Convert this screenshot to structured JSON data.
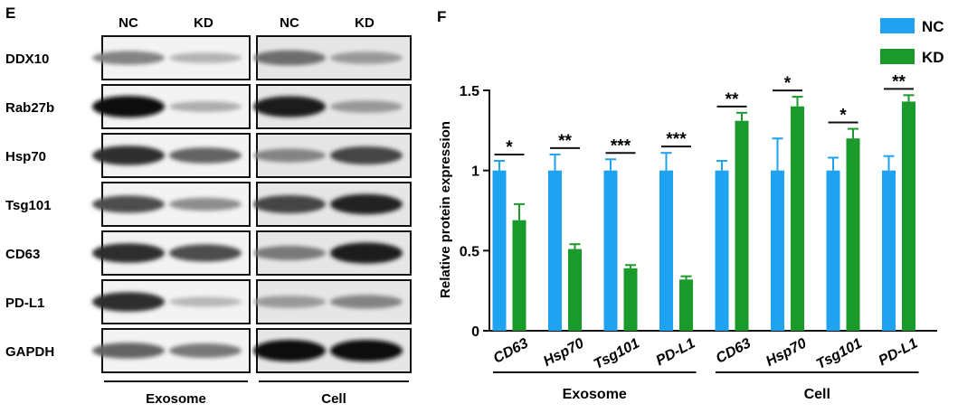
{
  "panel_e": {
    "label": "E",
    "columns": [
      "NC",
      "KD",
      "NC",
      "KD"
    ],
    "rows": [
      "DDX10",
      "Rab27b",
      "Hsp70",
      "Tsg101",
      "CD63",
      "PD-L1",
      "GAPDH"
    ],
    "groups": [
      "Exosome",
      "Cell"
    ],
    "band_intensity": [
      [
        0.45,
        0.22,
        0.55,
        0.35
      ],
      [
        1.0,
        0.25,
        0.95,
        0.35
      ],
      [
        0.85,
        0.6,
        0.45,
        0.75
      ],
      [
        0.7,
        0.4,
        0.75,
        0.9
      ],
      [
        0.85,
        0.7,
        0.5,
        0.95
      ],
      [
        0.85,
        0.2,
        0.35,
        0.45
      ],
      [
        0.6,
        0.5,
        1.0,
        1.0
      ]
    ]
  },
  "chart_data": {
    "type": "bar",
    "panel_label": "F",
    "categories": [
      "CD63",
      "Hsp70",
      "Tsg101",
      "PD-L1",
      "CD63",
      "Hsp70",
      "Tsg101",
      "PD-L1"
    ],
    "groups": [
      {
        "name": "Exosome",
        "category_indices": [
          0,
          1,
          2,
          3
        ]
      },
      {
        "name": "Cell",
        "category_indices": [
          4,
          5,
          6,
          7
        ]
      }
    ],
    "series": [
      {
        "name": "NC",
        "color": "#1fa3f0",
        "values": [
          1.0,
          1.0,
          1.0,
          1.0,
          1.0,
          1.0,
          1.0,
          1.0
        ],
        "errors": [
          0.06,
          0.1,
          0.07,
          0.11,
          0.06,
          0.2,
          0.08,
          0.09
        ]
      },
      {
        "name": "KD",
        "color": "#1a9a2a",
        "values": [
          0.69,
          0.51,
          0.39,
          0.32,
          1.31,
          1.4,
          1.2,
          1.43
        ],
        "errors": [
          0.1,
          0.03,
          0.02,
          0.02,
          0.05,
          0.06,
          0.06,
          0.04
        ]
      }
    ],
    "significance": [
      "*",
      "**",
      "***",
      "***",
      "**",
      "*",
      "*",
      "**"
    ],
    "ylabel": "Relative protein expression",
    "xlabel": "",
    "ylim": [
      0,
      1.5
    ],
    "yticks": [
      0,
      0.5,
      1,
      1.5
    ],
    "ytick_labels": [
      "0",
      "0.5",
      "1",
      "1.5"
    ],
    "legend_position": "top-right",
    "grid": false
  }
}
